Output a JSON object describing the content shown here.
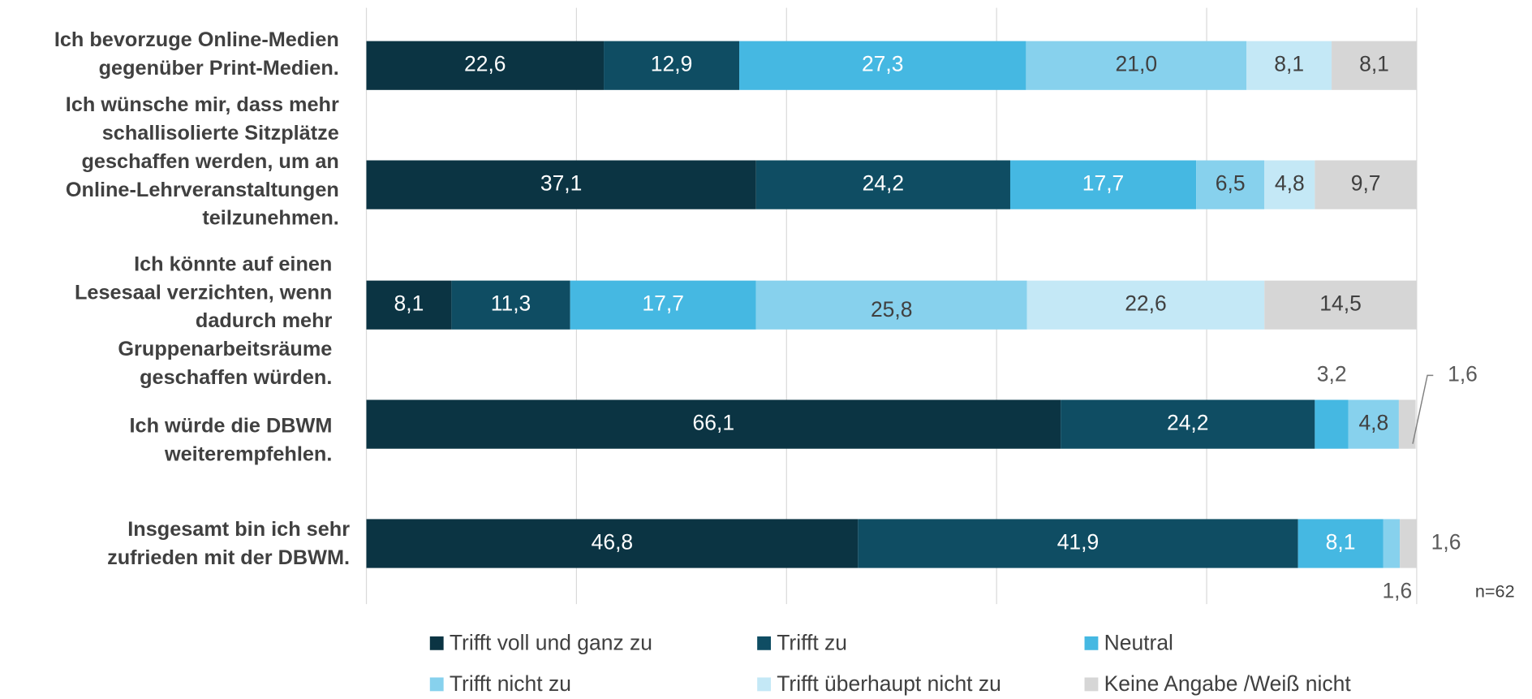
{
  "chart_data": {
    "type": "stacked_barh",
    "categories": [
      [
        "Ich bevorzuge Online-Medien",
        "gegenüber Print-Medien."
      ],
      [
        "Ich wünsche mir, dass mehr",
        "schallisolierte Sitzplätze",
        "geschaffen werden, um an",
        "Online-Lehrveranstaltungen",
        "teilzunehmen."
      ],
      [
        "Ich könnte auf einen",
        "Lesesaal verzichten, wenn",
        "dadurch mehr",
        "Gruppenarbeitsräume",
        "geschaffen würden."
      ],
      [
        "Ich würde die DBWM",
        "weiterempfehlen."
      ],
      [
        "Insgesamt bin ich sehr",
        "zufrieden mit der DBWM."
      ]
    ],
    "series": [
      {
        "name": "Trifft voll und ganz zu",
        "color": "#0b3443",
        "values": [
          22.6,
          37.1,
          8.1,
          66.1,
          46.8
        ],
        "value_labels": [
          "22,6",
          "37,1",
          "8,1",
          "66,1",
          "46,8"
        ]
      },
      {
        "name": "Trifft zu",
        "color": "#0f4d63",
        "values": [
          12.9,
          24.2,
          11.3,
          24.2,
          41.9
        ],
        "value_labels": [
          "12,9",
          "24,2",
          "11,3",
          "24,2",
          "41,9"
        ]
      },
      {
        "name": "Neutral",
        "color": "#45b8e2",
        "values": [
          27.3,
          17.7,
          17.7,
          3.2,
          8.1
        ],
        "value_labels": [
          "27,3",
          "17,7",
          "17,7",
          "3,2",
          "8,1"
        ]
      },
      {
        "name": "Trifft nicht zu",
        "color": "#87d1ed",
        "values": [
          21.0,
          6.5,
          25.8,
          4.8,
          1.6
        ],
        "value_labels": [
          "21,0",
          "6,5",
          "25,8",
          "4,8",
          "1,6"
        ]
      },
      {
        "name": "Trifft überhaupt nicht zu",
        "color": "#c4e8f6",
        "values": [
          8.1,
          4.8,
          22.6,
          0,
          0
        ],
        "value_labels": [
          "8,1",
          "4,8",
          "22,6",
          null,
          null
        ]
      },
      {
        "name": "Keine Angabe /Weiß nicht",
        "color": "#d6d6d6",
        "values": [
          8.1,
          9.7,
          14.5,
          1.6,
          1.6
        ],
        "value_labels": [
          "8,1",
          "9,7",
          "14,5",
          "1,6",
          "1,6"
        ]
      }
    ],
    "xlim": [
      0,
      100
    ],
    "xticks": [
      0,
      20,
      40,
      60,
      80,
      100
    ],
    "grid": true,
    "note": "n=62"
  }
}
